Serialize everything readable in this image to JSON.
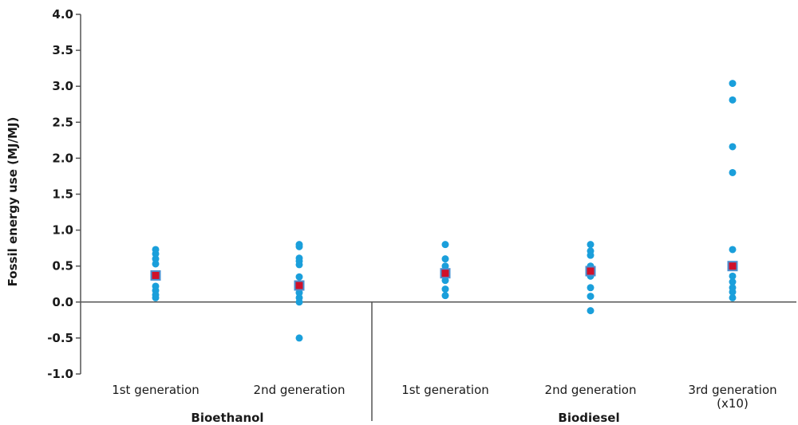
{
  "chart_data": {
    "type": "scatter",
    "title": "",
    "ylabel": "Fossil energy use (MJ/MJ)",
    "ylim": [
      -1.0,
      4.0
    ],
    "yticks": [
      "4.0",
      "3.5",
      "3.0",
      "2.5",
      "2.0",
      "1.5",
      "1.0",
      "0.5",
      "0.0",
      "-0.5",
      "-1.0"
    ],
    "categories": [
      {
        "label": "1st generation",
        "lines": [
          "1st generation"
        ]
      },
      {
        "label": "2nd generation",
        "lines": [
          "2nd generation"
        ]
      },
      {
        "label": "1st generation",
        "lines": [
          "1st generation"
        ]
      },
      {
        "label": "2nd generation",
        "lines": [
          "2nd generation"
        ]
      },
      {
        "label": "3rd generation (x10)",
        "lines": [
          "3rd generation",
          "(x10)"
        ]
      }
    ],
    "groups": [
      {
        "label": "Bioethanol",
        "categories": [
          0,
          1
        ]
      },
      {
        "label": "Biodiesel",
        "categories": [
          2,
          3,
          4
        ]
      }
    ],
    "series": [
      {
        "marker": "circle",
        "color": "#1a9fdb",
        "points": [
          [
            [
              0.73,
              0.67,
              0.6,
              0.53,
              0.38,
              0.22,
              0.16,
              0.1,
              0.06
            ]
          ],
          [
            [
              0.8,
              0.77,
              0.61,
              0.57,
              0.52,
              0.35,
              0.23,
              0.13,
              0.06,
              0.0,
              -0.5
            ]
          ],
          [
            [
              0.8,
              0.6,
              0.5,
              0.4,
              0.3,
              0.18,
              0.09
            ]
          ],
          [
            [
              0.8,
              0.71,
              0.65,
              0.5,
              0.45,
              0.4,
              0.36,
              0.2,
              0.08,
              -0.12
            ]
          ],
          [
            [
              3.04,
              2.81,
              2.16,
              1.8,
              0.73,
              0.5,
              0.36,
              0.28,
              0.2,
              0.14,
              0.06
            ]
          ]
        ]
      },
      {
        "marker": "square",
        "color": "#d0102a",
        "border": "#4a8fd0",
        "values": [
          0.37,
          0.23,
          0.4,
          0.43,
          0.5
        ]
      }
    ]
  }
}
